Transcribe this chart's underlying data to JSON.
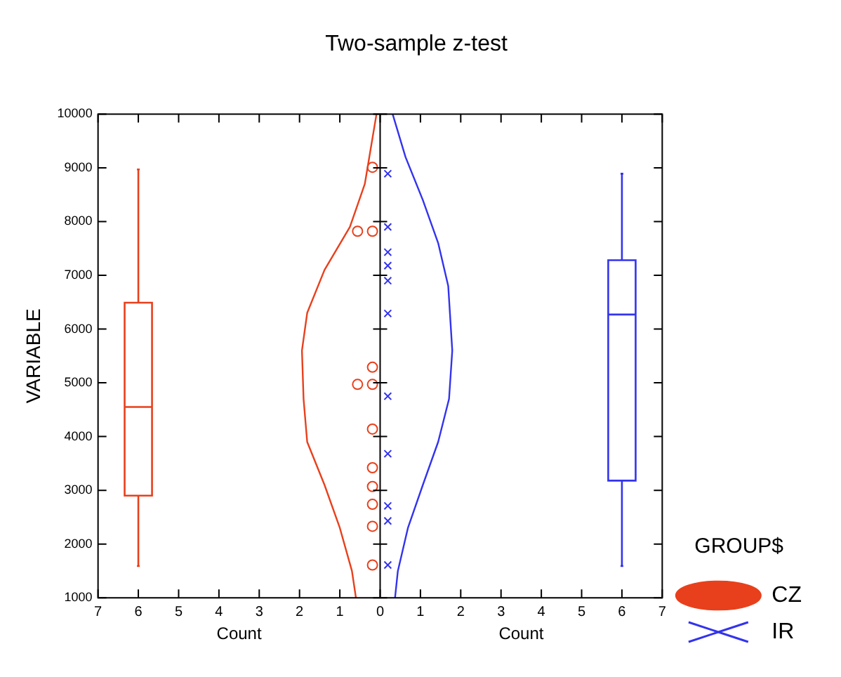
{
  "chart_data": {
    "type": "scatter",
    "title": "Two-sample z-test",
    "xlabel": "Count",
    "ylabel": "VARIABLE",
    "legend_title": "GROUP$",
    "legend": "bottom right",
    "xlim": [
      -7,
      7
    ],
    "xticks": [
      {
        "value": -7,
        "label": "7"
      },
      {
        "value": -6,
        "label": "6"
      },
      {
        "value": -5,
        "label": "5"
      },
      {
        "value": -4,
        "label": "4"
      },
      {
        "value": -3,
        "label": "3"
      },
      {
        "value": -2,
        "label": "2"
      },
      {
        "value": -1,
        "label": "1"
      },
      0,
      1,
      2,
      3,
      4,
      5,
      6,
      7
    ],
    "ylim": [
      1000,
      10000
    ],
    "yticks": [
      1000,
      2000,
      3000,
      4000,
      5000,
      6000,
      7000,
      8000,
      9000,
      10000
    ],
    "ref_lines": [
      {
        "axis": "x",
        "value": 0,
        "color": "#000000"
      }
    ],
    "series": [
      {
        "type": "box",
        "color": "#e8401c",
        "x": [
          -6
        ],
        "boxes": [
          {
            "low": 1590,
            "q1": 2900,
            "median": 4550,
            "q3": 6490,
            "high": 8970
          }
        ]
      },
      {
        "type": "box",
        "color": "#3333ee",
        "x": [
          6
        ],
        "boxes": [
          {
            "low": 1590,
            "q1": 3180,
            "median": 6270,
            "q3": 7280,
            "high": 8890
          }
        ]
      },
      {
        "type": "line",
        "color": "#e8401c",
        "marker": "none",
        "x": [
          -0.09,
          -0.38,
          -0.75,
          -1.38,
          -1.81,
          -1.94,
          -1.9,
          -1.81,
          -1.38,
          -1.0,
          -0.7,
          -0.6
        ],
        "values": [
          10000,
          8700,
          7900,
          7100,
          6300,
          5600,
          4700,
          3900,
          3100,
          2300,
          1500,
          1000
        ]
      },
      {
        "type": "line",
        "color": "#3333ee",
        "marker": "none",
        "x": [
          0.31,
          0.63,
          1.06,
          1.44,
          1.69,
          1.79,
          1.71,
          1.44,
          1.06,
          0.69,
          0.44,
          0.37
        ],
        "values": [
          10000,
          9200,
          8400,
          7600,
          6800,
          5600,
          4700,
          3900,
          3100,
          2300,
          1500,
          1000
        ]
      },
      {
        "name": "CZ",
        "color": "#e8401c",
        "marker": "circle",
        "x": [
          -0.19,
          -0.56,
          -0.19,
          -0.19,
          -0.56,
          -0.19,
          -0.19,
          -0.19,
          -0.19,
          -0.19,
          -0.19,
          -0.19
        ],
        "values": [
          9010,
          7820,
          7820,
          5290,
          4970,
          4970,
          4140,
          3420,
          3070,
          2740,
          2330,
          1610
        ]
      },
      {
        "name": "IR",
        "color": "#3333ee",
        "marker": "cross",
        "x": [
          0.19,
          0.19,
          0.19,
          0.19,
          0.19,
          0.19,
          0.19,
          0.19,
          0.19,
          0.19,
          0.19
        ],
        "values": [
          8890,
          7900,
          7430,
          7180,
          6900,
          6290,
          4750,
          3680,
          2710,
          2430,
          1610
        ]
      }
    ]
  }
}
